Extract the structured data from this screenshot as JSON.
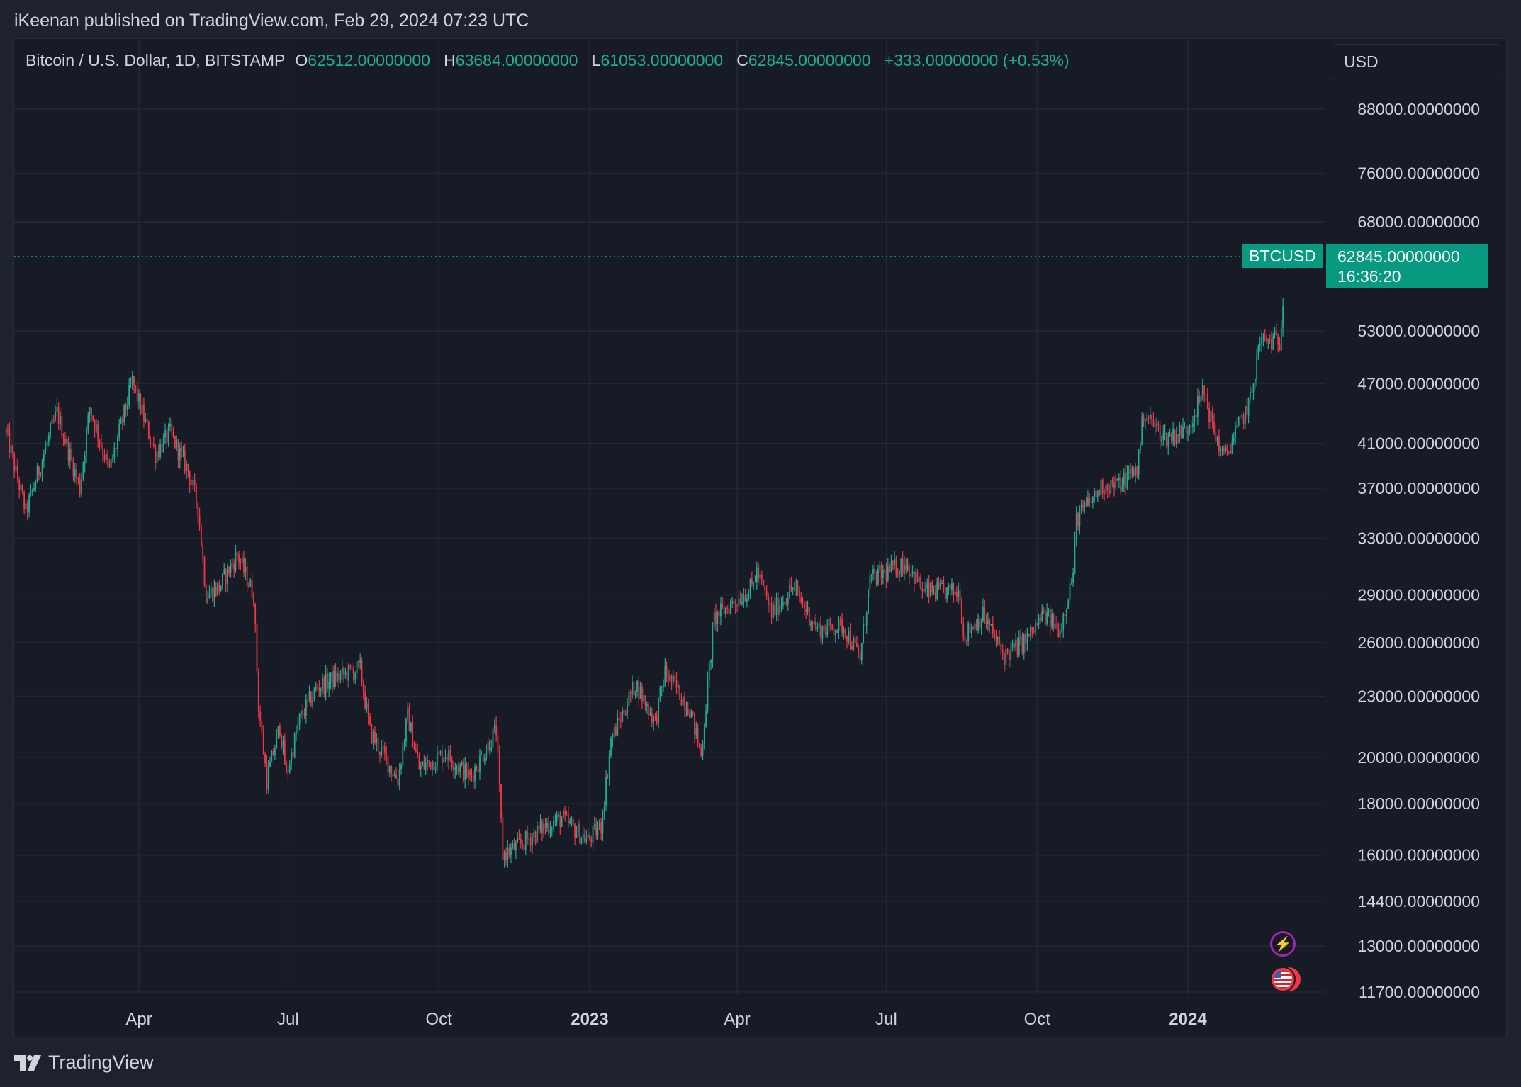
{
  "header": {
    "publisher_line": "iKeenan published on TradingView.com, Feb 29, 2024 07:23 UTC"
  },
  "legend": {
    "symbol_desc": "Bitcoin / U.S. Dollar, 1D, BITSTAMP",
    "o_label": "O",
    "o_value": "62512.00000000",
    "h_label": "H",
    "h_value": "63684.00000000",
    "l_label": "L",
    "l_value": "61053.00000000",
    "c_label": "C",
    "c_value": "62845.00000000",
    "change": "+333.00000000 (+0.53%)"
  },
  "currency_button": "USD",
  "last_price": {
    "symbol": "BTCUSD",
    "price": "62845.00000000",
    "countdown": "16:36:20"
  },
  "footer": {
    "brand": "TradingView"
  },
  "colors": {
    "up": "#22ab94",
    "down": "#f23645",
    "background": "#171b26",
    "grid": "#242833",
    "text": "#d1d4dc",
    "accent": "#089981"
  },
  "icons": {
    "flash": "flash-icon",
    "flag": "us-flag-icon"
  },
  "chart_data": {
    "type": "candlestick",
    "y_scale": "log",
    "ylim": [
      11700,
      88000
    ],
    "xlim": [
      "2022-01-08",
      "2024-03-28"
    ],
    "grid": true,
    "y_ticks": [
      {
        "value": 88000,
        "label": "88000.00000000"
      },
      {
        "value": 76000,
        "label": "76000.00000000"
      },
      {
        "value": 68000,
        "label": "68000.00000000"
      },
      {
        "value": 53000,
        "label": "53000.00000000"
      },
      {
        "value": 47000,
        "label": "47000.00000000"
      },
      {
        "value": 41000,
        "label": "41000.00000000"
      },
      {
        "value": 37000,
        "label": "37000.00000000"
      },
      {
        "value": 33000,
        "label": "33000.00000000"
      },
      {
        "value": 29000,
        "label": "29000.00000000"
      },
      {
        "value": 26000,
        "label": "26000.00000000"
      },
      {
        "value": 23000,
        "label": "23000.00000000"
      },
      {
        "value": 20000,
        "label": "20000.00000000"
      },
      {
        "value": 18000,
        "label": "18000.00000000"
      },
      {
        "value": 16000,
        "label": "16000.00000000"
      },
      {
        "value": 14400,
        "label": "14400.00000000"
      },
      {
        "value": 13000,
        "label": "13000.00000000"
      },
      {
        "value": 11700,
        "label": "11700.00000000"
      }
    ],
    "x_ticks": [
      {
        "date": "2022-04-01",
        "label": "Apr",
        "bold": false
      },
      {
        "date": "2022-07-01",
        "label": "Jul",
        "bold": false
      },
      {
        "date": "2022-10-01",
        "label": "Oct",
        "bold": false
      },
      {
        "date": "2023-01-01",
        "label": "2023",
        "bold": true
      },
      {
        "date": "2023-04-01",
        "label": "Apr",
        "bold": false
      },
      {
        "date": "2023-07-01",
        "label": "Jul",
        "bold": false
      },
      {
        "date": "2023-10-01",
        "label": "Oct",
        "bold": false
      },
      {
        "date": "2024-01-01",
        "label": "2024",
        "bold": true
      }
    ],
    "close_anchors": [
      [
        "2022-01-10",
        42000
      ],
      [
        "2022-01-22",
        35000
      ],
      [
        "2022-02-05",
        41500
      ],
      [
        "2022-02-10",
        44000
      ],
      [
        "2022-02-24",
        37000
      ],
      [
        "2022-03-02",
        44500
      ],
      [
        "2022-03-14",
        38500
      ],
      [
        "2022-03-28",
        47200
      ],
      [
        "2022-04-11",
        40000
      ],
      [
        "2022-04-20",
        42000
      ],
      [
        "2022-05-01",
        38500
      ],
      [
        "2022-05-07",
        35500
      ],
      [
        "2022-05-12",
        29000
      ],
      [
        "2022-05-20",
        29500
      ],
      [
        "2022-05-31",
        31800
      ],
      [
        "2022-06-10",
        29000
      ],
      [
        "2022-06-13",
        22500
      ],
      [
        "2022-06-18",
        19000
      ],
      [
        "2022-06-26",
        21500
      ],
      [
        "2022-06-30",
        19200
      ],
      [
        "2022-07-08",
        21800
      ],
      [
        "2022-07-19",
        23500
      ],
      [
        "2022-07-30",
        24000
      ],
      [
        "2022-08-14",
        24500
      ],
      [
        "2022-08-20",
        21200
      ],
      [
        "2022-09-06",
        19000
      ],
      [
        "2022-09-12",
        22000
      ],
      [
        "2022-09-19",
        19500
      ],
      [
        "2022-10-05",
        20200
      ],
      [
        "2022-10-20",
        19100
      ],
      [
        "2022-11-05",
        21300
      ],
      [
        "2022-11-09",
        16000
      ],
      [
        "2022-11-20",
        16400
      ],
      [
        "2022-12-05",
        17100
      ],
      [
        "2022-12-15",
        17400
      ],
      [
        "2022-12-31",
        16550
      ],
      [
        "2023-01-08",
        17100
      ],
      [
        "2023-01-14",
        20800
      ],
      [
        "2023-01-29",
        23700
      ],
      [
        "2023-02-10",
        21700
      ],
      [
        "2023-02-16",
        24300
      ],
      [
        "2023-03-03",
        22400
      ],
      [
        "2023-03-10",
        20100
      ],
      [
        "2023-03-18",
        27500
      ],
      [
        "2023-04-10",
        29500
      ],
      [
        "2023-04-13",
        30600
      ],
      [
        "2023-04-22",
        27800
      ],
      [
        "2023-05-05",
        29500
      ],
      [
        "2023-05-20",
        26800
      ],
      [
        "2023-06-05",
        27000
      ],
      [
        "2023-06-15",
        25100
      ],
      [
        "2023-06-21",
        30000
      ],
      [
        "2023-07-13",
        31200
      ],
      [
        "2023-07-24",
        29200
      ],
      [
        "2023-08-15",
        29200
      ],
      [
        "2023-08-17",
        26400
      ],
      [
        "2023-08-29",
        27700
      ],
      [
        "2023-09-11",
        25200
      ],
      [
        "2023-09-25",
        26200
      ],
      [
        "2023-10-05",
        27700
      ],
      [
        "2023-10-15",
        26800
      ],
      [
        "2023-10-23",
        30500
      ],
      [
        "2023-10-25",
        34500
      ],
      [
        "2023-11-10",
        37200
      ],
      [
        "2023-11-20",
        37300
      ],
      [
        "2023-12-01",
        38700
      ],
      [
        "2023-12-05",
        44000
      ],
      [
        "2023-12-18",
        41500
      ],
      [
        "2023-12-31",
        42300
      ],
      [
        "2024-01-11",
        46200
      ],
      [
        "2024-01-16",
        42600
      ],
      [
        "2024-01-23",
        39600
      ],
      [
        "2024-02-01",
        42600
      ],
      [
        "2024-02-08",
        45200
      ],
      [
        "2024-02-14",
        51800
      ],
      [
        "2024-02-26",
        51800
      ],
      [
        "2024-02-28",
        57000
      ],
      [
        "2024-02-29",
        62845
      ]
    ]
  }
}
